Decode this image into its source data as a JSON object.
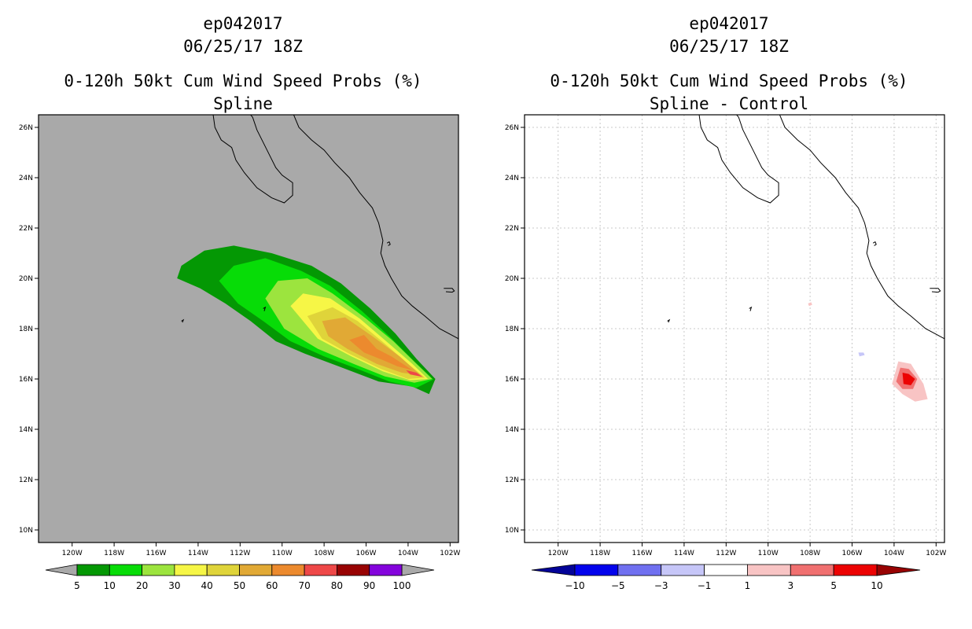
{
  "chart_data": [
    {
      "type": "heatmap",
      "storm_id": "ep042017",
      "datetime": "06/25/17 18Z",
      "title": "0-120h 50kt Cum Wind Speed Probs (%)",
      "subtitle": "Spline",
      "background_color": "#a9a9a9",
      "x_ticks": [
        "120W",
        "118W",
        "116W",
        "114W",
        "112W",
        "110W",
        "108W",
        "106W",
        "104W",
        "102W"
      ],
      "y_ticks": [
        "26N",
        "24N",
        "22N",
        "20N",
        "18N",
        "16N",
        "14N",
        "12N",
        "10N"
      ],
      "lon_range": [
        -121.6,
        -101.6
      ],
      "lat_range": [
        9.5,
        26.5
      ],
      "grid": false,
      "colorbar": {
        "labels": [
          "5",
          "10",
          "20",
          "30",
          "40",
          "50",
          "60",
          "70",
          "80",
          "90",
          "100"
        ],
        "colors": [
          "#049804",
          "#07dc07",
          "#9ce43e",
          "#f6f646",
          "#dfd43a",
          "#e1a935",
          "#ec8a2e",
          "#ee4848",
          "#980303",
          "#8404dc"
        ],
        "end_color": "#a9a9a9"
      },
      "contours": [
        {
          "level": 5,
          "color": "#049804",
          "polygon": [
            [
              -115.0,
              20.0
            ],
            [
              -114.8,
              20.5
            ],
            [
              -113.7,
              21.1
            ],
            [
              -112.3,
              21.3
            ],
            [
              -110.5,
              21.0
            ],
            [
              -108.6,
              20.5
            ],
            [
              -107.2,
              19.8
            ],
            [
              -105.8,
              18.8
            ],
            [
              -104.6,
              17.8
            ],
            [
              -103.6,
              16.8
            ],
            [
              -102.7,
              16.0
            ],
            [
              -103.0,
              15.4
            ],
            [
              -103.8,
              15.7
            ],
            [
              -105.4,
              15.9
            ],
            [
              -107.3,
              16.5
            ],
            [
              -108.9,
              17.0
            ],
            [
              -110.3,
              17.5
            ],
            [
              -111.5,
              18.3
            ],
            [
              -112.7,
              19.0
            ],
            [
              -113.9,
              19.6
            ]
          ]
        },
        {
          "level": 10,
          "color": "#07dc07",
          "polygon": [
            [
              -113.0,
              19.9
            ],
            [
              -112.3,
              20.5
            ],
            [
              -110.8,
              20.8
            ],
            [
              -109.1,
              20.3
            ],
            [
              -107.7,
              19.7
            ],
            [
              -106.2,
              18.7
            ],
            [
              -104.9,
              17.7
            ],
            [
              -103.7,
              16.7
            ],
            [
              -102.8,
              15.98
            ],
            [
              -103.6,
              15.65
            ],
            [
              -104.9,
              15.9
            ],
            [
              -106.4,
              16.4
            ],
            [
              -108.0,
              16.9
            ],
            [
              -109.6,
              17.5
            ],
            [
              -110.9,
              18.3
            ],
            [
              -112.1,
              19.0
            ]
          ]
        },
        {
          "level": 20,
          "color": "#9ce43e",
          "polygon": [
            [
              -110.8,
              19.2
            ],
            [
              -110.2,
              19.9
            ],
            [
              -108.8,
              20.0
            ],
            [
              -107.6,
              19.4
            ],
            [
              -106.0,
              18.4
            ],
            [
              -104.7,
              17.5
            ],
            [
              -103.6,
              16.6
            ],
            [
              -102.85,
              16.0
            ],
            [
              -103.7,
              15.85
            ],
            [
              -105.1,
              16.1
            ],
            [
              -106.6,
              16.6
            ],
            [
              -108.3,
              17.2
            ],
            [
              -109.9,
              18.0
            ]
          ]
        },
        {
          "level": 30,
          "color": "#f6f646",
          "polygon": [
            [
              -109.6,
              18.9
            ],
            [
              -109.0,
              19.4
            ],
            [
              -107.7,
              19.2
            ],
            [
              -106.3,
              18.4
            ],
            [
              -104.9,
              17.4
            ],
            [
              -103.8,
              16.6
            ],
            [
              -103.05,
              16.0
            ],
            [
              -103.9,
              15.95
            ],
            [
              -105.2,
              16.3
            ],
            [
              -106.7,
              16.9
            ],
            [
              -108.3,
              17.6
            ]
          ]
        },
        {
          "level": 40,
          "color": "#dfd43a",
          "polygon": [
            [
              -108.8,
              18.5
            ],
            [
              -107.6,
              18.85
            ],
            [
              -106.4,
              18.3
            ],
            [
              -105.1,
              17.4
            ],
            [
              -104.0,
              16.6
            ],
            [
              -103.2,
              16.05
            ],
            [
              -104.0,
              16.0
            ],
            [
              -105.3,
              16.4
            ],
            [
              -106.8,
              17.0
            ],
            [
              -108.1,
              17.6
            ]
          ]
        },
        {
          "level": 50,
          "color": "#e1a935",
          "polygon": [
            [
              -108.1,
              18.3
            ],
            [
              -107.0,
              18.45
            ],
            [
              -105.7,
              17.7
            ],
            [
              -104.4,
              16.9
            ],
            [
              -103.4,
              16.15
            ],
            [
              -104.3,
              16.25
            ],
            [
              -105.5,
              16.6
            ],
            [
              -106.9,
              17.2
            ],
            [
              -107.8,
              17.7
            ]
          ]
        },
        {
          "level": 60,
          "color": "#ec8a2e",
          "polygon": [
            [
              -106.8,
              17.55
            ],
            [
              -106.1,
              17.75
            ],
            [
              -105.5,
              17.2
            ],
            [
              -104.8,
              16.9
            ],
            [
              -103.8,
              16.35
            ],
            [
              -104.5,
              16.5
            ],
            [
              -105.2,
              16.75
            ],
            [
              -106.1,
              17.05
            ]
          ]
        },
        {
          "level": 70,
          "color": "#ee4848",
          "polygon": [
            [
              -104.1,
              16.35
            ],
            [
              -103.6,
              16.25
            ],
            [
              -103.3,
              16.08
            ],
            [
              -103.9,
              16.18
            ]
          ]
        }
      ]
    },
    {
      "type": "heatmap",
      "storm_id": "ep042017",
      "datetime": "06/25/17 18Z",
      "title": "0-120h 50kt Cum Wind Speed Probs (%)",
      "subtitle": "Spline - Control",
      "background_color": "#ffffff",
      "x_ticks": [
        "120W",
        "118W",
        "116W",
        "114W",
        "112W",
        "110W",
        "108W",
        "106W",
        "104W",
        "102W"
      ],
      "y_ticks": [
        "26N",
        "24N",
        "22N",
        "20N",
        "18N",
        "16N",
        "14N",
        "12N",
        "10N"
      ],
      "lon_range": [
        -121.6,
        -101.6
      ],
      "lat_range": [
        9.5,
        26.5
      ],
      "grid": true,
      "colorbar": {
        "labels": [
          "-10",
          "-5",
          "-3",
          "-1",
          "1",
          "3",
          "5",
          "10"
        ],
        "colors": [
          "#0303ec",
          "#7070f0",
          "#c6c6f8",
          "#ffffff",
          "#f8c4c4",
          "#f07070",
          "#ec0303"
        ],
        "left_end_color": "#030398",
        "right_end_color": "#980303"
      },
      "contours": [
        {
          "level": 1,
          "color": "#f8c4c4",
          "polygon": [
            [
              -103.8,
              16.7
            ],
            [
              -103.2,
              16.6
            ],
            [
              -102.6,
              15.8
            ],
            [
              -102.4,
              15.2
            ],
            [
              -103.0,
              15.1
            ],
            [
              -103.6,
              15.4
            ],
            [
              -104.1,
              15.8
            ]
          ]
        },
        {
          "level": 3,
          "color": "#f07070",
          "polygon": [
            [
              -103.7,
              16.45
            ],
            [
              -103.3,
              16.4
            ],
            [
              -102.9,
              16.0
            ],
            [
              -103.1,
              15.6
            ],
            [
              -103.6,
              15.6
            ],
            [
              -103.9,
              15.9
            ]
          ]
        },
        {
          "level": 5,
          "color": "#ec0303",
          "polygon": [
            [
              -103.6,
              16.25
            ],
            [
              -103.3,
              16.2
            ],
            [
              -103.0,
              16.0
            ],
            [
              -103.2,
              15.75
            ],
            [
              -103.55,
              15.8
            ]
          ]
        },
        {
          "level": 1,
          "color": "#f8c4c4",
          "polygon": [
            [
              -108.1,
              19.0
            ],
            [
              -107.95,
              19.05
            ],
            [
              -107.9,
              18.95
            ],
            [
              -108.05,
              18.9
            ]
          ]
        },
        {
          "level": -1,
          "color": "#c6c6f8",
          "polygon": [
            [
              -105.7,
              17.05
            ],
            [
              -105.45,
              17.05
            ],
            [
              -105.4,
              16.95
            ],
            [
              -105.65,
              16.9
            ]
          ]
        }
      ]
    }
  ],
  "coastline": [
    [
      [
        -113.3,
        26.6
      ],
      [
        -113.2,
        26.0
      ],
      [
        -112.9,
        25.5
      ],
      [
        -112.4,
        25.2
      ],
      [
        -112.2,
        24.7
      ],
      [
        -111.8,
        24.2
      ],
      [
        -111.2,
        23.6
      ],
      [
        -110.5,
        23.2
      ],
      [
        -109.9,
        23.0
      ],
      [
        -109.5,
        23.3
      ],
      [
        -109.5,
        23.8
      ],
      [
        -110.0,
        24.1
      ],
      [
        -110.3,
        24.4
      ],
      [
        -110.6,
        24.9
      ],
      [
        -110.9,
        25.4
      ],
      [
        -111.2,
        25.9
      ],
      [
        -111.4,
        26.4
      ],
      [
        -111.6,
        26.6
      ]
    ],
    [
      [
        -109.5,
        26.6
      ],
      [
        -109.2,
        26.0
      ],
      [
        -108.6,
        25.5
      ],
      [
        -108.0,
        25.1
      ],
      [
        -107.5,
        24.6
      ],
      [
        -106.8,
        24.0
      ],
      [
        -106.3,
        23.4
      ],
      [
        -105.7,
        22.8
      ],
      [
        -105.4,
        22.2
      ],
      [
        -105.2,
        21.5
      ],
      [
        -105.3,
        21.0
      ],
      [
        -105.1,
        20.5
      ],
      [
        -104.8,
        20.0
      ],
      [
        -104.3,
        19.3
      ],
      [
        -103.8,
        18.9
      ],
      [
        -103.2,
        18.5
      ],
      [
        -102.5,
        18.0
      ],
      [
        -101.6,
        17.6
      ]
    ],
    [
      [
        -105.0,
        21.4
      ],
      [
        -104.9,
        21.45
      ],
      [
        -104.85,
        21.35
      ],
      [
        -104.95,
        21.3
      ]
    ],
    [
      [
        -102.3,
        19.6
      ],
      [
        -101.9,
        19.6
      ],
      [
        -101.8,
        19.5
      ],
      [
        -101.9,
        19.45
      ],
      [
        -102.2,
        19.47
      ]
    ],
    [
      [
        -114.8,
        18.3
      ],
      [
        -114.7,
        18.35
      ],
      [
        -114.75,
        18.25
      ]
    ],
    [
      [
        -110.9,
        18.8
      ],
      [
        -110.8,
        18.85
      ],
      [
        -110.85,
        18.7
      ]
    ]
  ]
}
